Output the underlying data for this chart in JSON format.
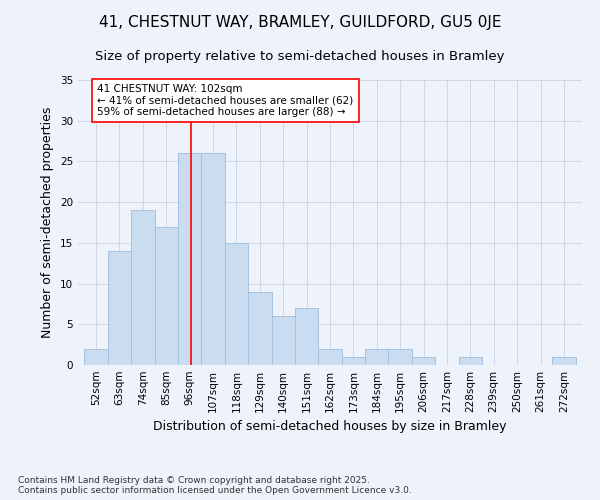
{
  "title_line1": "41, CHESTNUT WAY, BRAMLEY, GUILDFORD, GU5 0JE",
  "title_line2": "Size of property relative to semi-detached houses in Bramley",
  "xlabel": "Distribution of semi-detached houses by size in Bramley",
  "ylabel": "Number of semi-detached properties",
  "bin_labels": [
    "52sqm",
    "63sqm",
    "74sqm",
    "85sqm",
    "96sqm",
    "107sqm",
    "118sqm",
    "129sqm",
    "140sqm",
    "151sqm",
    "162sqm",
    "173sqm",
    "184sqm",
    "195sqm",
    "206sqm",
    "217sqm",
    "228sqm",
    "239sqm",
    "250sqm",
    "261sqm",
    "272sqm"
  ],
  "bin_edges": [
    52,
    63,
    74,
    85,
    96,
    107,
    118,
    129,
    140,
    151,
    162,
    173,
    184,
    195,
    206,
    217,
    228,
    239,
    250,
    261,
    272
  ],
  "values": [
    2,
    14,
    19,
    17,
    26,
    26,
    15,
    9,
    6,
    7,
    2,
    1,
    2,
    2,
    1,
    0,
    1,
    0,
    0,
    0,
    1
  ],
  "bar_color": "#c9dcf0",
  "bar_edge_color": "#a0bedd",
  "red_line_x": 102,
  "annotation_line1": "41 CHESTNUT WAY: 102sqm",
  "annotation_line2": "← 41% of semi-detached houses are smaller (62)",
  "annotation_line3": "59% of semi-detached houses are larger (88) →",
  "ylim": [
    0,
    35
  ],
  "yticks": [
    0,
    5,
    10,
    15,
    20,
    25,
    30,
    35
  ],
  "grid_color": "#d0d8e8",
  "background_color": "#eef2fa",
  "footer_text": "Contains HM Land Registry data © Crown copyright and database right 2025.\nContains public sector information licensed under the Open Government Licence v3.0.",
  "title_fontsize": 11,
  "subtitle_fontsize": 9.5,
  "axis_label_fontsize": 9,
  "tick_fontsize": 7.5,
  "annotation_fontsize": 7.5,
  "footer_fontsize": 6.5
}
